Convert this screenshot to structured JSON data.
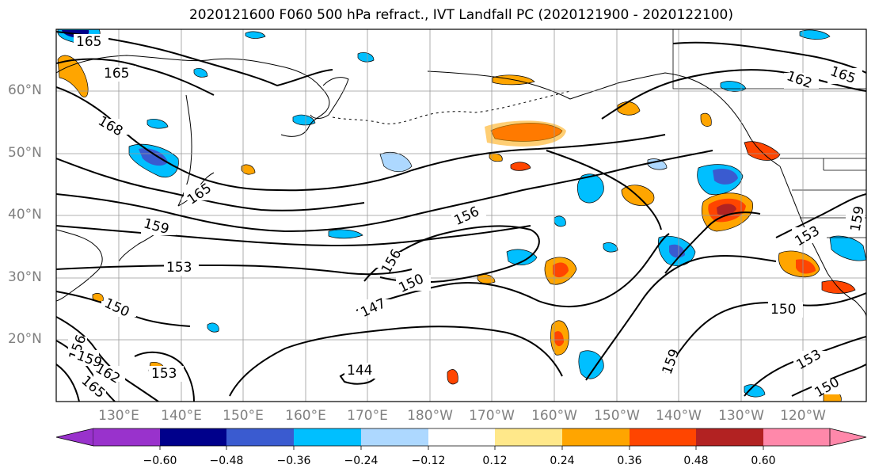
{
  "title": "2020121600 F060 500 hPa refract., IVT Landfall PC (2020121900 - 2020122100)",
  "lat_labels": [
    "60°N",
    "50°N",
    "40°N",
    "30°N",
    "20°N"
  ],
  "lon_labels": [
    "130°E",
    "140°E",
    "150°E",
    "160°E",
    "170°E",
    "180°W",
    "170°W",
    "160°W",
    "150°W",
    "140°W",
    "130°W",
    "120°W"
  ],
  "colorbar": {
    "ticks": [
      "−0.60",
      "−0.48",
      "−0.36",
      "−0.24",
      "−0.12",
      "0.12",
      "0.24",
      "0.36",
      "0.48",
      "0.60"
    ],
    "colors": [
      "#9932CC",
      "#00008B",
      "#3A5BD0",
      "#00BFFF",
      "#ADD8FF",
      "#FFFFFF",
      "#FFE88A",
      "#FFA500",
      "#FF4500",
      "#B22222",
      "#FF88AA"
    ]
  },
  "contour_labels": [
    "165",
    "165",
    "168",
    "165",
    "159",
    "153",
    "150",
    "156",
    "156",
    "150",
    "147",
    "144",
    "162",
    "165",
    "159",
    "153",
    "150",
    "159",
    "153",
    "150",
    "156",
    "159",
    "162",
    "165",
    "153"
  ],
  "colors": {
    "contour": "#000000",
    "coast": "#000000",
    "grid": "#999999"
  }
}
